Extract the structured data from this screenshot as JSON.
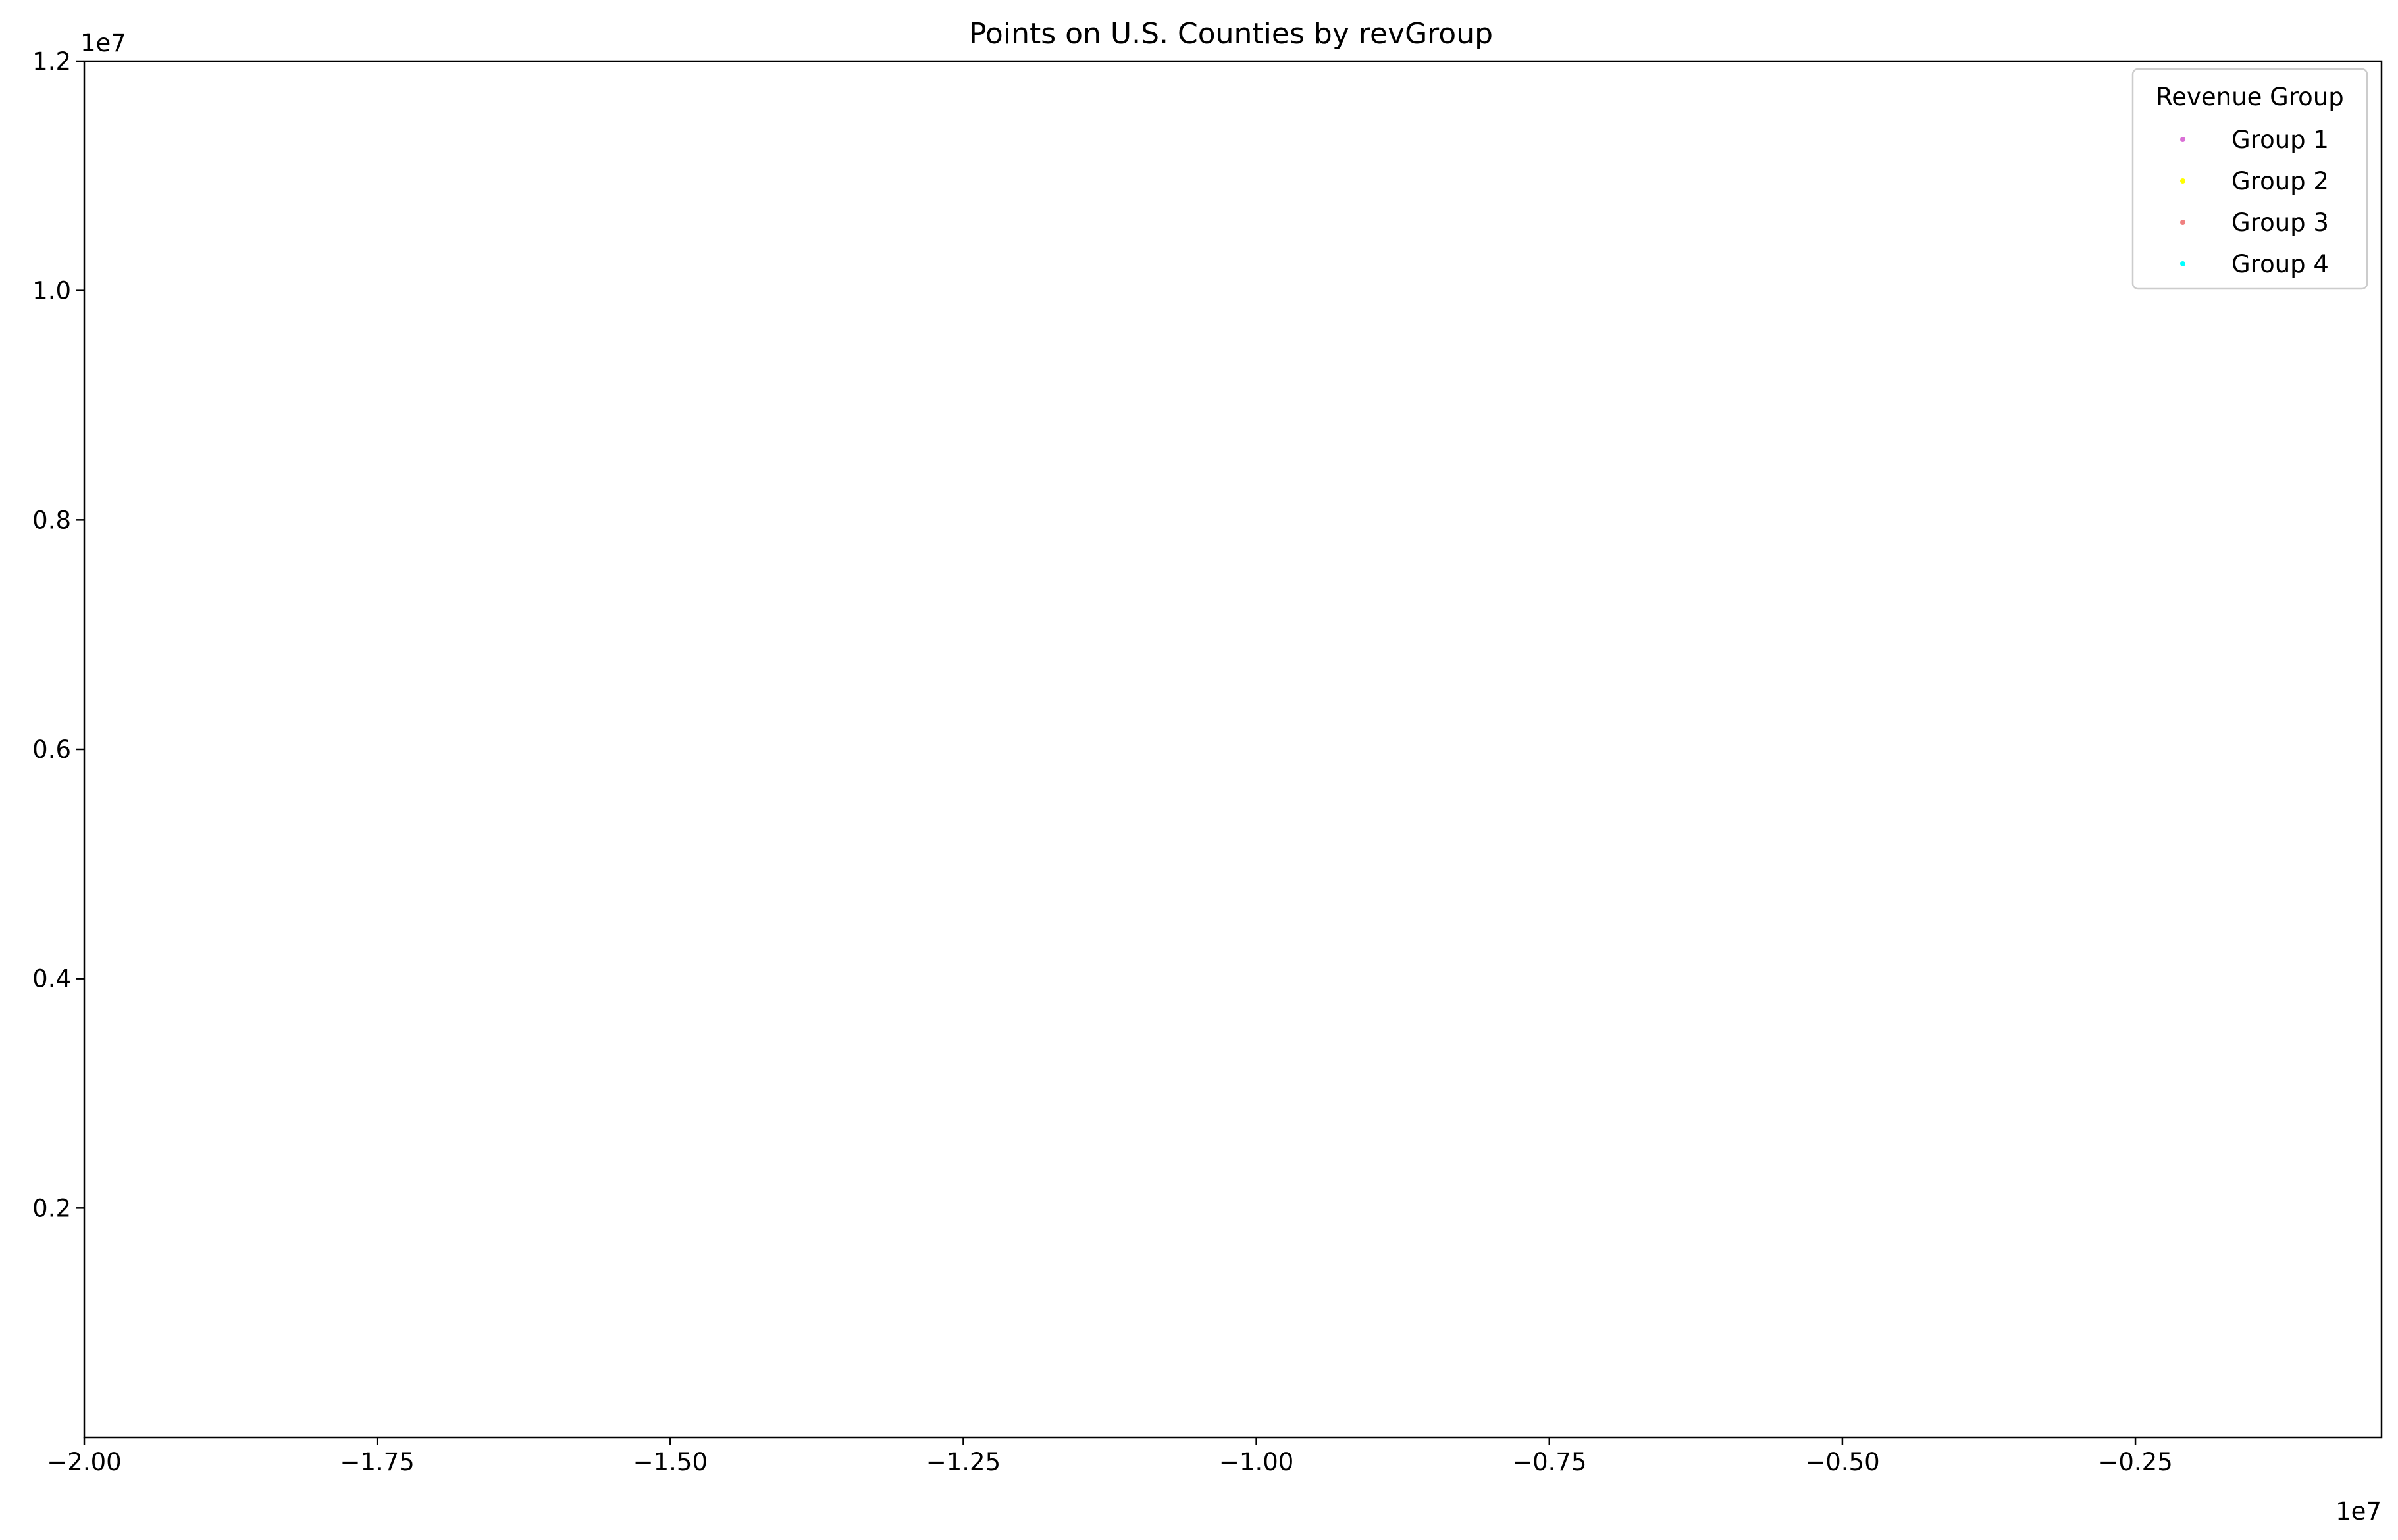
{
  "chart_data": {
    "type": "scatter",
    "title": "Points on U.S. Counties by revGroup",
    "xlabel": "",
    "ylabel": "",
    "xlim": [
      -20000000,
      -400000
    ],
    "ylim": [
      0,
      12000000
    ],
    "x_offset_label": "1e7",
    "y_offset_label": "1e7",
    "x_ticks": [
      {
        "value": -20000000,
        "label": "−2.00"
      },
      {
        "value": -17500000,
        "label": "−1.75"
      },
      {
        "value": -15000000,
        "label": "−1.50"
      },
      {
        "value": -12500000,
        "label": "−1.25"
      },
      {
        "value": -10000000,
        "label": "−1.00"
      },
      {
        "value": -7500000,
        "label": "−0.75"
      },
      {
        "value": -5000000,
        "label": "−0.50"
      },
      {
        "value": -2500000,
        "label": "−0.25"
      }
    ],
    "y_ticks": [
      {
        "value": 2000000,
        "label": "0.2"
      },
      {
        "value": 4000000,
        "label": "0.4"
      },
      {
        "value": 6000000,
        "label": "0.6"
      },
      {
        "value": 8000000,
        "label": "0.8"
      },
      {
        "value": 10000000,
        "label": "1.0"
      },
      {
        "value": 12000000,
        "label": "1.2"
      }
    ],
    "grid": false,
    "legend": {
      "title": "Revenue Group",
      "placement": "top-right"
    },
    "series": [
      {
        "name": "Group 1",
        "color": "#da70d6",
        "points": []
      },
      {
        "name": "Group 2",
        "color": "#ffff00",
        "points": []
      },
      {
        "name": "Group 3",
        "color": "#f08080",
        "points": []
      },
      {
        "name": "Group 4",
        "color": "#00ffff",
        "points": []
      }
    ]
  }
}
